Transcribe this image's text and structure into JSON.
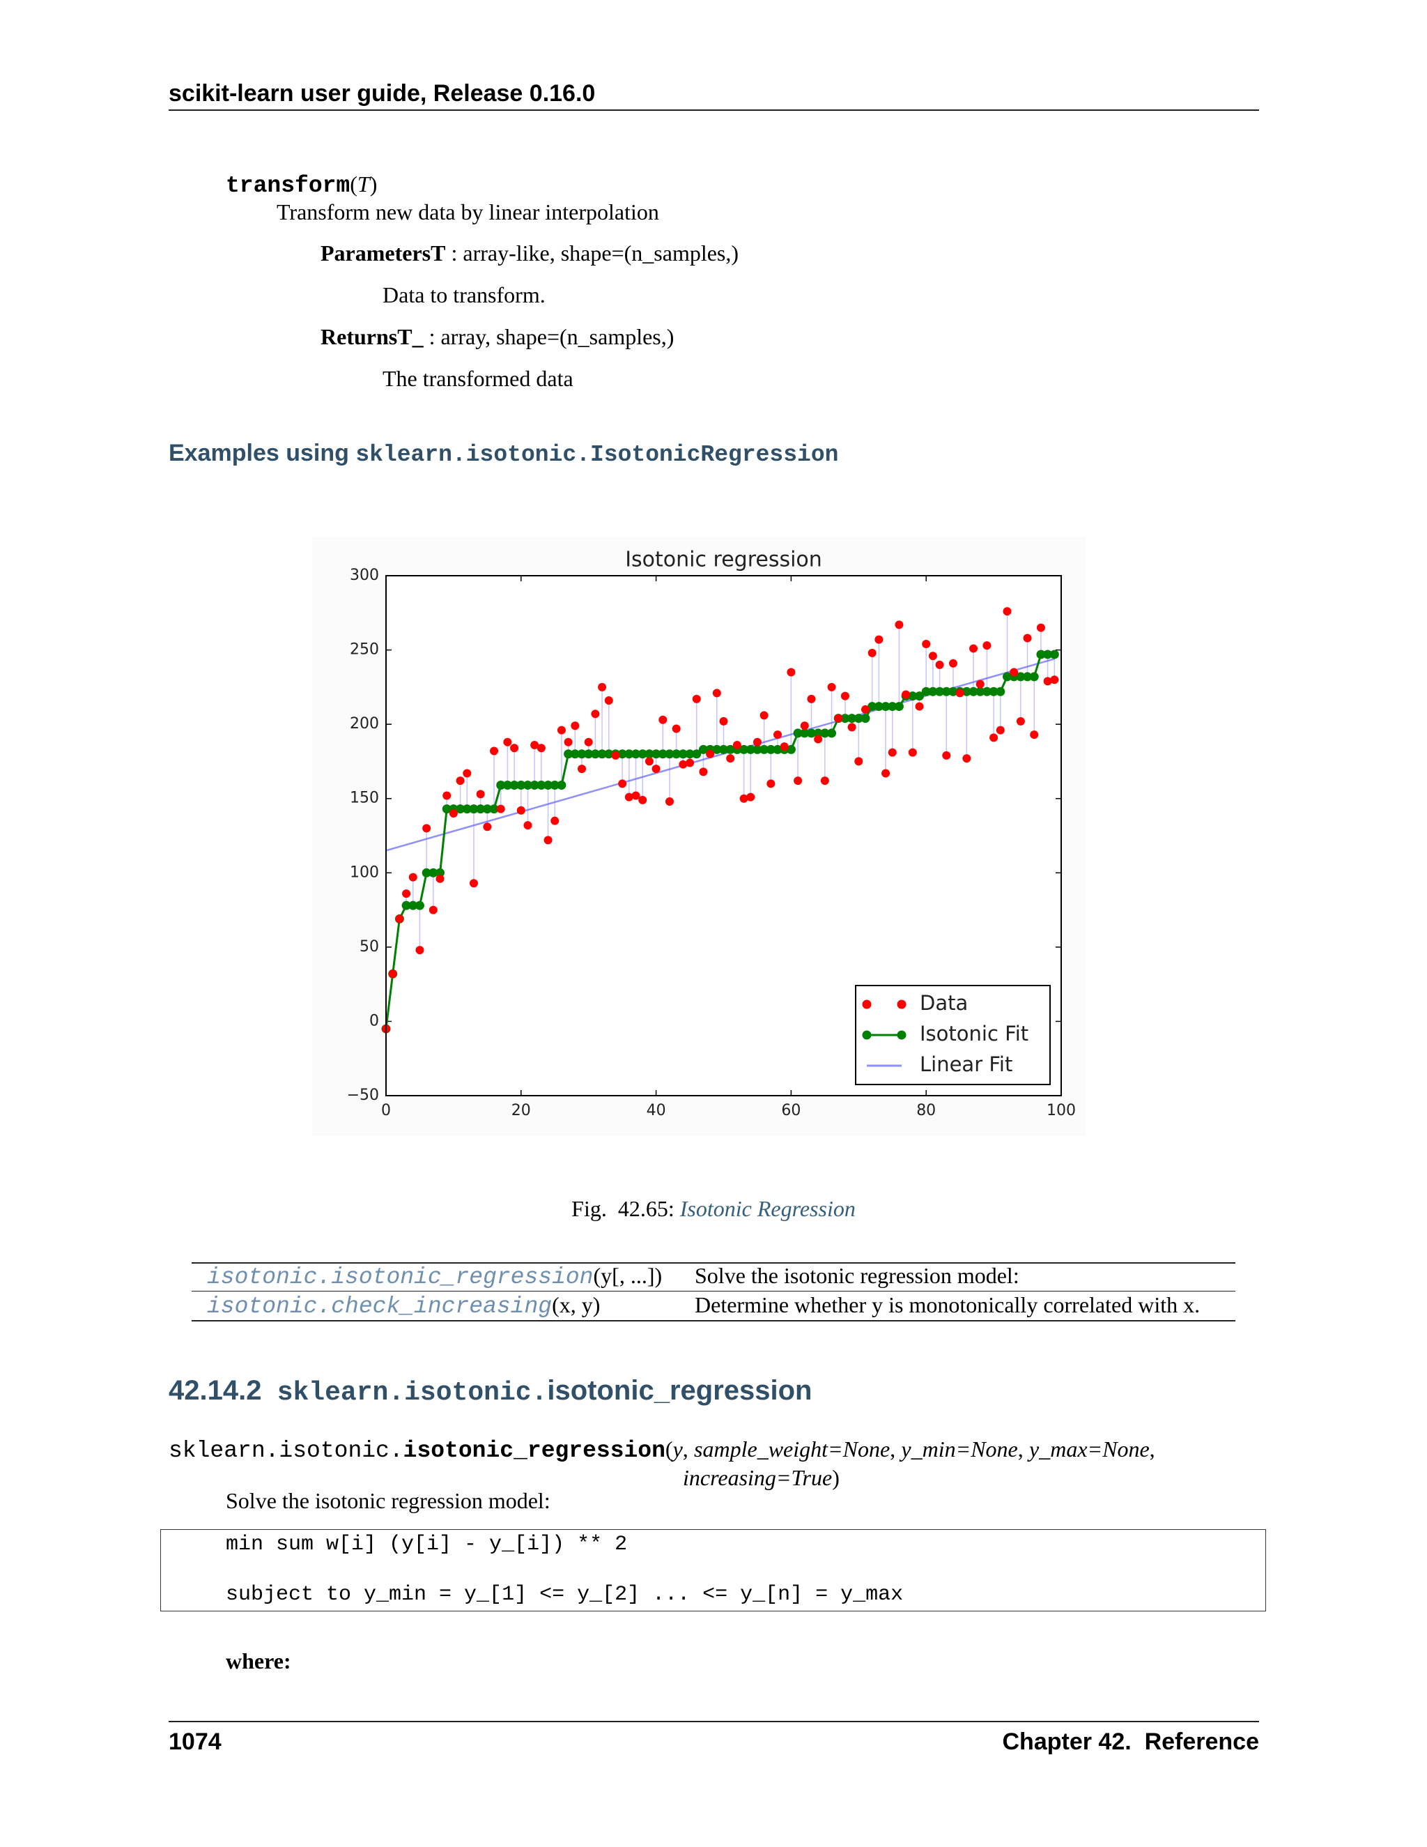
{
  "header": {
    "title": "scikit-learn user guide, Release 0.16.0"
  },
  "method": {
    "name": "transform",
    "open": "(",
    "arg": "T",
    "close": ")",
    "description": "Transform new data by linear interpolation",
    "params_label": "ParametersT",
    "params_type": ": array-like, shape=(n_samples,)",
    "params_desc": "Data to transform.",
    "returns_label": "ReturnsT_",
    "returns_type": ": array, shape=(n_samples,)",
    "returns_desc": "The transformed data"
  },
  "examples": {
    "prefix": "Examples using",
    "target": "sklearn.isotonic.IsotonicRegression"
  },
  "chart_data": {
    "type": "scatter",
    "title": "Isotonic regression",
    "x": [
      0,
      1,
      2,
      3,
      4,
      5,
      6,
      7,
      8,
      9,
      10,
      11,
      12,
      13,
      14,
      15,
      16,
      17,
      18,
      19,
      20,
      21,
      22,
      23,
      24,
      25,
      26,
      27,
      28,
      29,
      30,
      31,
      32,
      33,
      34,
      35,
      36,
      37,
      38,
      39,
      40,
      41,
      42,
      43,
      44,
      45,
      46,
      47,
      48,
      49,
      50,
      51,
      52,
      53,
      54,
      55,
      56,
      57,
      58,
      59,
      60,
      61,
      62,
      63,
      64,
      65,
      66,
      67,
      68,
      69,
      70,
      71,
      72,
      73,
      74,
      75,
      76,
      77,
      78,
      79,
      80,
      81,
      82,
      83,
      84,
      85,
      86,
      87,
      88,
      89,
      90,
      91,
      92,
      93,
      94,
      95,
      96,
      97,
      98,
      99
    ],
    "series": [
      {
        "name": "Data",
        "color": "#ff0000",
        "style": "markers",
        "values": [
          -5,
          32,
          69,
          86,
          97,
          48,
          130,
          75,
          96,
          152,
          140,
          162,
          167,
          93,
          153,
          131,
          182,
          143,
          188,
          184,
          142,
          132,
          186,
          184,
          122,
          135,
          196,
          188,
          199,
          170,
          188,
          207,
          225,
          216,
          179,
          160,
          151,
          152,
          149,
          175,
          170,
          203,
          148,
          197,
          173,
          174,
          217,
          168,
          180,
          221,
          202,
          177,
          186,
          150,
          151,
          188,
          206,
          160,
          193,
          185,
          235,
          162,
          199,
          217,
          190,
          162,
          225,
          204,
          219,
          198,
          175,
          210,
          248,
          257,
          167,
          181,
          267,
          220,
          181,
          212,
          254,
          246,
          240,
          179,
          241,
          221,
          177,
          251,
          227,
          253,
          191,
          196,
          276,
          235,
          202,
          258,
          193,
          265,
          229,
          230
        ]
      },
      {
        "name": "Isotonic Fit",
        "color": "#008000",
        "style": "line-markers",
        "values": [
          -5,
          32,
          69,
          78,
          78,
          78,
          100,
          100,
          100,
          143,
          143,
          143,
          143,
          143,
          143,
          143,
          143,
          159,
          159,
          159,
          159,
          159,
          159,
          159,
          159,
          159,
          159,
          180,
          180,
          180,
          180,
          180,
          180,
          180,
          180,
          180,
          180,
          180,
          180,
          180,
          180,
          180,
          180,
          180,
          180,
          180,
          180,
          183,
          183,
          183,
          183,
          183,
          183,
          183,
          183,
          183,
          183,
          183,
          183,
          183,
          183,
          194,
          194,
          194,
          194,
          194,
          194,
          204,
          204,
          204,
          204,
          204,
          212,
          212,
          212,
          212,
          212,
          219,
          219,
          219,
          222,
          222,
          222,
          222,
          222,
          222,
          222,
          222,
          222,
          222,
          222,
          222,
          232,
          232,
          232,
          232,
          232,
          247,
          247,
          247
        ]
      },
      {
        "name": "Linear Fit",
        "color": "#6a6aff",
        "style": "line",
        "x": [
          0,
          99
        ],
        "values": [
          115,
          244
        ]
      }
    ],
    "connectors": true,
    "xlim": [
      0,
      100
    ],
    "xticks": [
      0,
      20,
      40,
      60,
      80,
      100
    ],
    "ylim": [
      -50,
      300
    ],
    "yticks": [
      {
        "value": -50,
        "label": "−50"
      },
      0,
      50,
      100,
      150,
      200,
      250,
      300
    ],
    "legend": "lower right"
  },
  "caption": {
    "prefix": "Fig.  42.65:",
    "link": "Isotonic Regression"
  },
  "table": {
    "rows": [
      {
        "func": "isotonic.isotonic_regression",
        "args": "(y[, ...])",
        "desc": "Solve the isotonic regression model:"
      },
      {
        "func": "isotonic.check_increasing",
        "args": "(x, y)",
        "desc": "Determine whether y is monotonically correlated with x."
      }
    ]
  },
  "section": {
    "number": "42.14.2",
    "module": "sklearn.isotonic.",
    "name": "isotonic_regression"
  },
  "signature": {
    "module": "sklearn.isotonic.",
    "name": "isotonic_regression",
    "open": "(",
    "params": [
      "y",
      "sample_weight=None",
      "y_min=None",
      "y_max=None",
      "increasing=True"
    ],
    "separator": ",",
    "close": ")"
  },
  "summary": "Solve the isotonic regression model:",
  "code": [
    "min sum w[i] (y[i] - y_[i]) ** 2",
    "subject to y_min = y_[1] <= y_[2] ... <= y_[n] = y_max"
  ],
  "where": "where:",
  "footer": {
    "page": "1074",
    "chapter": "Chapter 42.  Reference"
  }
}
